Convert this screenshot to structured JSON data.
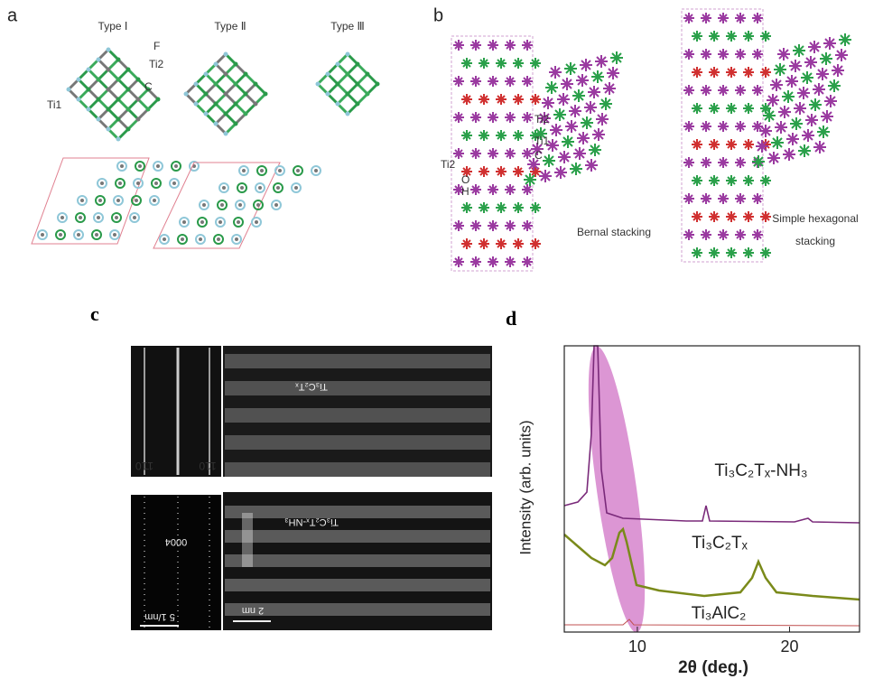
{
  "panel_a": {
    "letter": "a",
    "types": [
      "Type Ⅰ",
      "Type Ⅱ",
      "Type Ⅲ"
    ],
    "atom_labels": [
      "F",
      "Ti2",
      "C",
      "Ti1"
    ]
  },
  "panel_b": {
    "letter": "b",
    "atom_labels": [
      "Ti2",
      "Ti1",
      "C",
      "Ti2",
      "O",
      "H"
    ],
    "captions": [
      "Bernal stacking",
      "Simple hexagonal",
      "stacking"
    ]
  },
  "panel_c": {
    "letter": "c",
    "image_labels": [
      "Ti₃C₂Tₓ",
      "Ti₃C₂Tₓ-NH₃"
    ],
    "diffraction_labels": [
      "1̄10",
      "110",
      "0004"
    ],
    "scale_bars": [
      "5 1/nm",
      "2 nm"
    ]
  },
  "panel_d": {
    "letter": "d",
    "chart_data": {
      "type": "line",
      "xlabel": "2θ (deg.)",
      "ylabel": "Intensity (arb. units)",
      "xlim": [
        5.2,
        24.6
      ],
      "xticks": [
        10,
        20
      ],
      "curve_labels": [
        "Ti₃C₂Tₓ-NH₃",
        "Ti₃C₂Tₓ",
        "Ti₃AlC₂"
      ]
    }
  }
}
